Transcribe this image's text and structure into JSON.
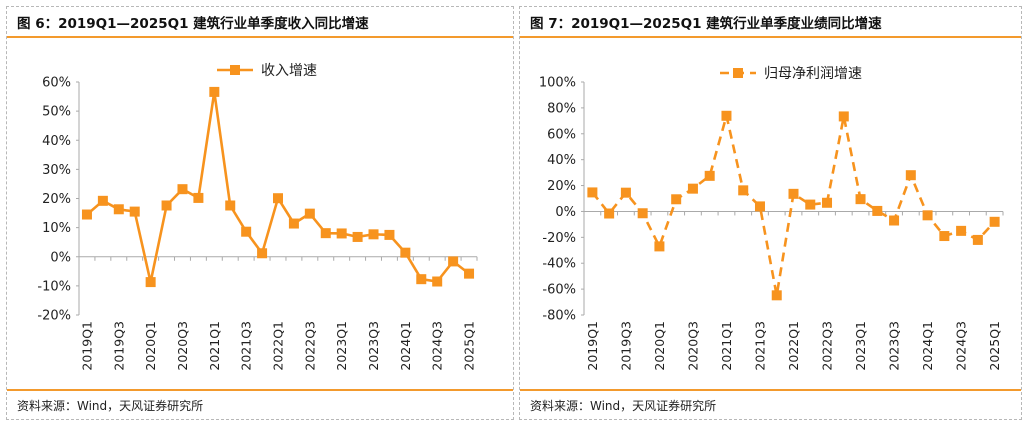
{
  "colors": {
    "accent": "#f39a2d",
    "series": "#f7931e",
    "axis": "#aaaaaa"
  },
  "panels": [
    {
      "title": "图 6：2019Q1—2025Q1 建筑行业单季度收入同比增速",
      "source": "资料来源：Wind，天风证券研究所"
    },
    {
      "title": "图 7：2019Q1—2025Q1 建筑行业单季度业绩同比增速",
      "source": "资料来源：Wind，天风证券研究所"
    }
  ],
  "chart_data": [
    {
      "type": "line",
      "title": "",
      "xlabel": "",
      "ylabel": "",
      "line_style": "solid",
      "legend_position": "top-center",
      "ylim": [
        -20,
        60
      ],
      "yticks": [
        "-20%",
        "-10%",
        "0%",
        "10%",
        "20%",
        "30%",
        "40%",
        "50%",
        "60%"
      ],
      "ytick_values": [
        -20,
        -10,
        0,
        10,
        20,
        30,
        40,
        50,
        60
      ],
      "categories": [
        "2019Q1",
        "2019Q2",
        "2019Q3",
        "2019Q4",
        "2020Q1",
        "2020Q2",
        "2020Q3",
        "2020Q4",
        "2021Q1",
        "2021Q2",
        "2021Q3",
        "2021Q4",
        "2022Q1",
        "2022Q2",
        "2022Q3",
        "2022Q4",
        "2023Q1",
        "2023Q2",
        "2023Q3",
        "2023Q4",
        "2024Q1",
        "2024Q2",
        "2024Q3",
        "2024Q4",
        "2025Q1"
      ],
      "xtick_labels": [
        "2019Q1",
        "2019Q3",
        "2020Q1",
        "2020Q3",
        "2021Q1",
        "2021Q3",
        "2022Q1",
        "2022Q3",
        "2023Q1",
        "2023Q3",
        "2024Q1",
        "2024Q3",
        "2025Q1"
      ],
      "series": [
        {
          "name": "收入增速",
          "values": [
            14.5,
            19.2,
            16.3,
            15.5,
            -8.7,
            17.6,
            23.2,
            20.2,
            56.6,
            17.6,
            8.6,
            1.2,
            20.1,
            11.4,
            14.8,
            8.1,
            8.0,
            6.8,
            7.7,
            7.5,
            1.4,
            -7.7,
            -8.5,
            -1.6,
            -5.8
          ]
        }
      ]
    },
    {
      "type": "line",
      "title": "",
      "xlabel": "",
      "ylabel": "",
      "line_style": "dashed",
      "legend_position": "top-center",
      "ylim": [
        -80,
        100
      ],
      "yticks": [
        "-80%",
        "-60%",
        "-40%",
        "-20%",
        "0%",
        "20%",
        "40%",
        "60%",
        "80%",
        "100%"
      ],
      "ytick_values": [
        -80,
        -60,
        -40,
        -20,
        0,
        20,
        40,
        60,
        80,
        100
      ],
      "categories": [
        "2019Q1",
        "2019Q2",
        "2019Q3",
        "2019Q4",
        "2020Q1",
        "2020Q2",
        "2020Q3",
        "2020Q4",
        "2021Q1",
        "2021Q2",
        "2021Q3",
        "2021Q4",
        "2022Q1",
        "2022Q2",
        "2022Q3",
        "2022Q4",
        "2023Q1",
        "2023Q2",
        "2023Q3",
        "2023Q4",
        "2024Q1",
        "2024Q2",
        "2024Q3",
        "2024Q4",
        "2025Q1"
      ],
      "xtick_labels": [
        "2019Q1",
        "2019Q3",
        "2020Q1",
        "2020Q3",
        "2021Q1",
        "2021Q3",
        "2022Q1",
        "2022Q3",
        "2023Q1",
        "2023Q3",
        "2024Q1",
        "2024Q3",
        "2025Q1"
      ],
      "series": [
        {
          "name": "归母净利润增速",
          "values": [
            14.7,
            -1.6,
            14.5,
            -1.4,
            -27.0,
            9.4,
            17.6,
            27.5,
            73.9,
            16.3,
            3.9,
            -64.8,
            13.6,
            5.3,
            6.7,
            73.4,
            9.5,
            0.4,
            -7.0,
            28.0,
            -3.0,
            -19.0,
            -15.0,
            -22.0,
            -8.0
          ]
        }
      ]
    }
  ]
}
